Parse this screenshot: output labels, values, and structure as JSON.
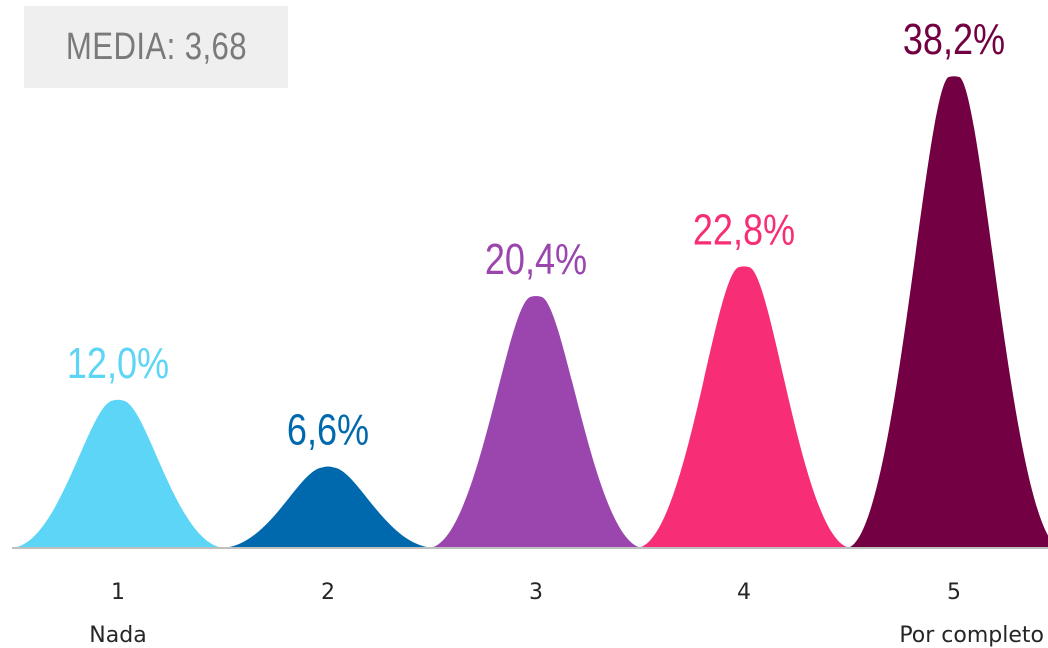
{
  "summary": {
    "media_label": "MEDIA: 3,68"
  },
  "chart_data": {
    "type": "area",
    "categories": [
      "1",
      "2",
      "3",
      "4",
      "5"
    ],
    "category_sublabels": [
      "Nada",
      "",
      "",
      "",
      "Por completo"
    ],
    "values": [
      12.0,
      6.6,
      20.4,
      22.8,
      38.2
    ],
    "value_labels": [
      "12,0%",
      "6,6%",
      "20,4%",
      "22,8%",
      "38,2%"
    ],
    "colors": [
      "#5dd5f6",
      "#0069ae",
      "#9a46ae",
      "#f72d76",
      "#720042"
    ],
    "ylim": [
      0,
      40
    ],
    "grid": false,
    "legend": "none"
  }
}
